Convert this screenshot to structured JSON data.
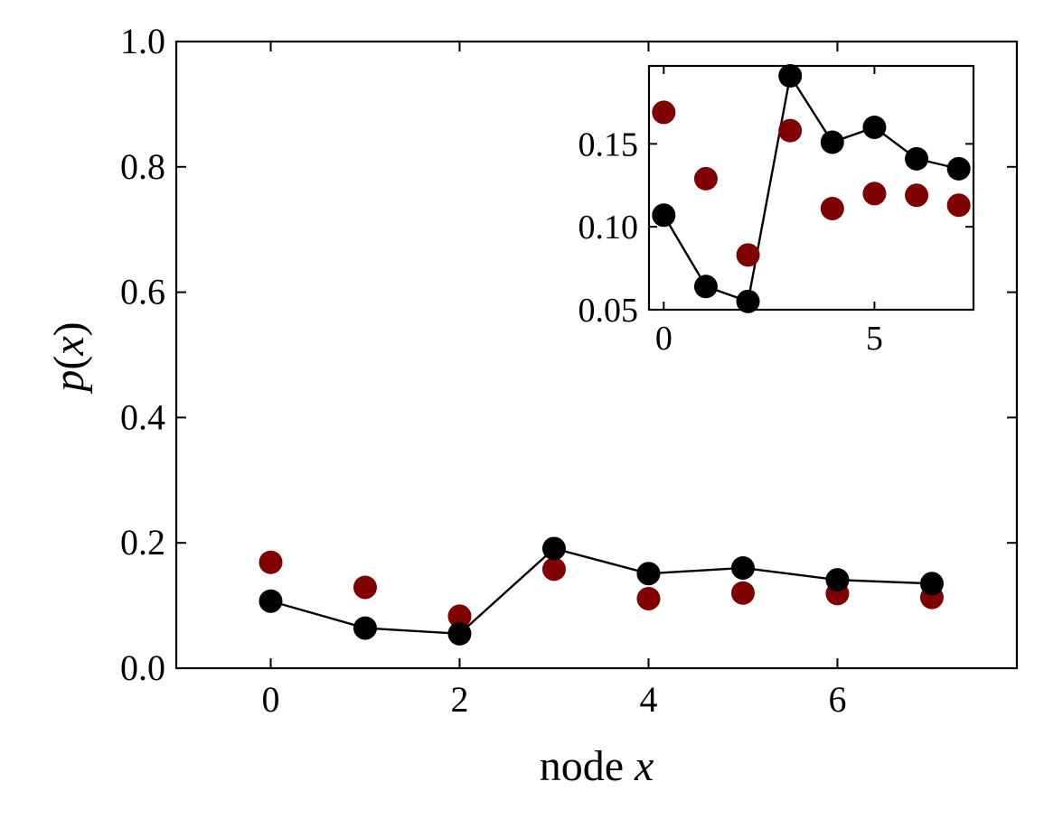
{
  "chart_data": [
    {
      "name": "main",
      "type": "scatter",
      "xlabel_text": "node",
      "xlabel_var": "x",
      "ylabel_func": "p",
      "ylabel_arg": "x",
      "xlim": [
        -1,
        7.9
      ],
      "ylim": [
        0,
        1.0
      ],
      "xticks": [
        0,
        2,
        4,
        6
      ],
      "xtick_labels": [
        "0",
        "2",
        "4",
        "6"
      ],
      "yticks": [
        0,
        0.2,
        0.4,
        0.6,
        0.8,
        1.0
      ],
      "ytick_labels": [
        "0.0",
        "0.2",
        "0.4",
        "0.6",
        "0.8",
        "1.0"
      ],
      "series": [
        {
          "name": "black",
          "color": "#000000",
          "line": true,
          "x": [
            0,
            1,
            2,
            3,
            4,
            5,
            6,
            7
          ],
          "y": [
            0.107,
            0.064,
            0.055,
            0.191,
            0.151,
            0.16,
            0.141,
            0.135
          ]
        },
        {
          "name": "red",
          "color": "#800000",
          "line": false,
          "x": [
            0,
            1,
            2,
            3,
            4,
            5,
            6,
            7
          ],
          "y": [
            0.169,
            0.129,
            0.083,
            0.158,
            0.111,
            0.12,
            0.119,
            0.113
          ]
        }
      ]
    },
    {
      "name": "inset",
      "type": "scatter",
      "xlim": [
        -0.35,
        7.35
      ],
      "ylim": [
        0.05,
        0.197
      ],
      "xticks": [
        0,
        5
      ],
      "xtick_labels": [
        "0",
        "5"
      ],
      "yticks": [
        0.05,
        0.1,
        0.15
      ],
      "ytick_labels": [
        "0.05",
        "0.10",
        "0.15"
      ],
      "series": [
        {
          "name": "black",
          "color": "#000000",
          "line": true,
          "x": [
            0,
            1,
            2,
            3,
            4,
            5,
            6,
            7
          ],
          "y": [
            0.107,
            0.064,
            0.055,
            0.191,
            0.151,
            0.16,
            0.141,
            0.135
          ]
        },
        {
          "name": "red",
          "color": "#800000",
          "line": false,
          "x": [
            0,
            1,
            2,
            3,
            4,
            5,
            6,
            7
          ],
          "y": [
            0.169,
            0.129,
            0.083,
            0.158,
            0.111,
            0.12,
            0.119,
            0.113
          ]
        }
      ]
    }
  ]
}
